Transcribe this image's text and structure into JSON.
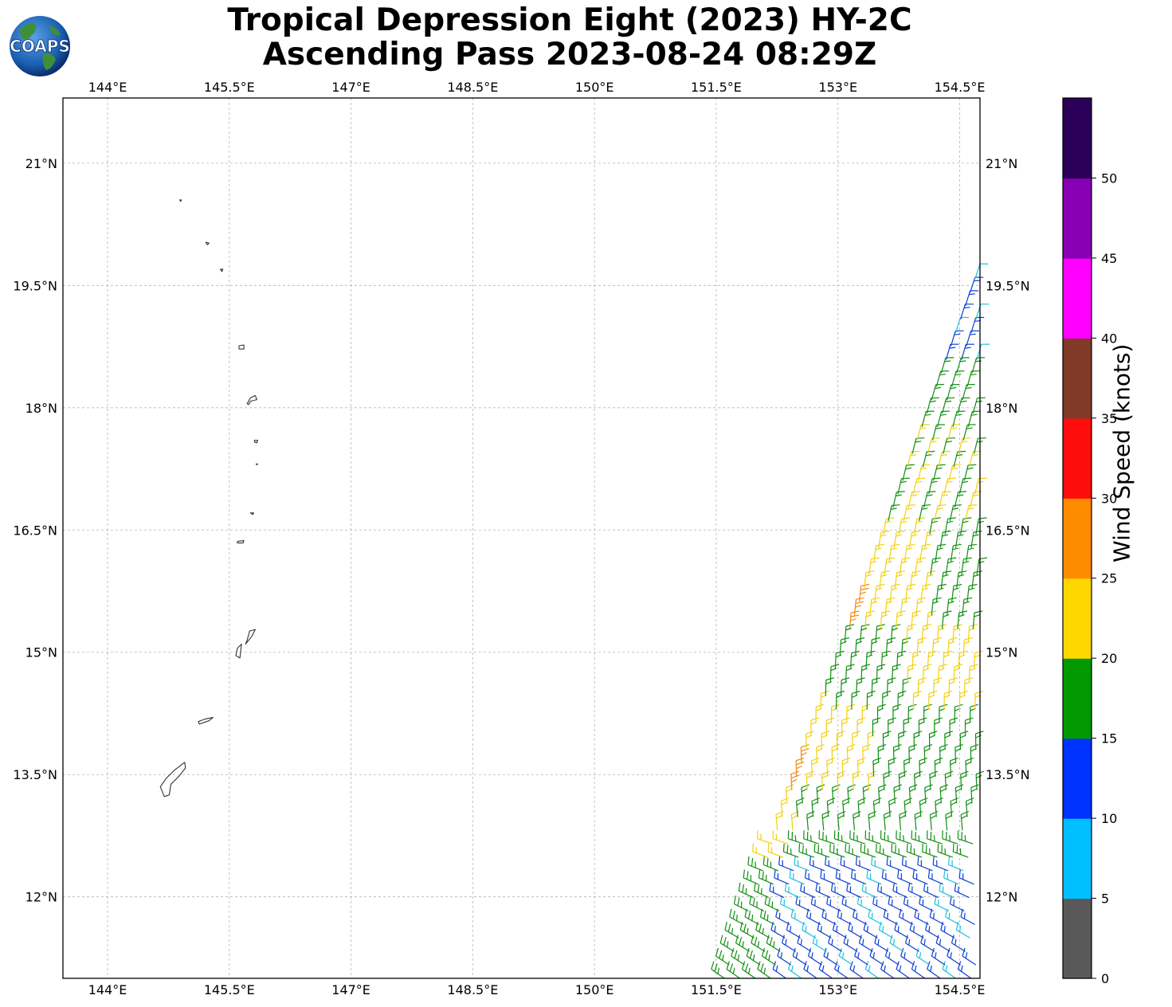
{
  "title": {
    "line1": "Tropical Depression Eight (2023) HY-2C",
    "line2": "Ascending Pass 2023-08-24 08:29Z"
  },
  "logo": {
    "text": "COAPS"
  },
  "map": {
    "lon_range": [
      143.45,
      154.75
    ],
    "lat_range": [
      11.0,
      21.8
    ],
    "lon_ticks": [
      "144°E",
      "145.5°E",
      "147°E",
      "148.5°E",
      "150°E",
      "151.5°E",
      "153°E",
      "154.5°E"
    ],
    "lat_ticks": [
      "21°N",
      "19.5°N",
      "18°N",
      "16.5°N",
      "15°N",
      "13.5°N",
      "12°N"
    ],
    "islands": [
      "Guam",
      "Rota",
      "Tinian",
      "Saipan",
      "Anatahan",
      "Sarigan",
      "Guguan",
      "Alamagan",
      "Pagan",
      "Agrihan",
      "Asuncion",
      "Maug",
      "Farallon de Pajaros"
    ]
  },
  "colorbar": {
    "label": "Wind Speed (knots)",
    "ticks": [
      "0",
      "5",
      "10",
      "15",
      "20",
      "25",
      "30",
      "35",
      "40",
      "45",
      "50"
    ],
    "colors": [
      "#595959",
      "#00bfff",
      "#0033ff",
      "#009900",
      "#ffd700",
      "#ff8c00",
      "#ff0d0d",
      "#803a27",
      "#ff00ff",
      "#8800b3",
      "#2b0059"
    ]
  },
  "wind_colors": {
    "light_blue": "#1cbfe0",
    "blue": "#0b3fd6",
    "green": "#108f10",
    "yellow": "#f2d111",
    "orange": "#f08a10"
  }
}
